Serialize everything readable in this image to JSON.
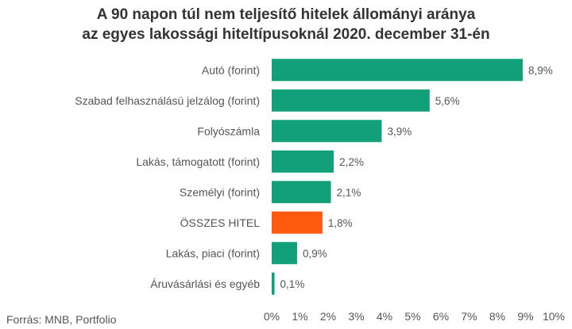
{
  "title_line1": "A 90 napon túl nem teljesítő hitelek állományi aránya",
  "title_line2": "az egyes lakossági hiteltípusoknál 2020. december 31-én",
  "source": "Forrás: MNB, Portfolio",
  "colors": {
    "bar": "#12A07A",
    "highlight": "#FF5B0F",
    "text": "#555555",
    "title": "#333333"
  },
  "chart_data": {
    "type": "bar",
    "orientation": "horizontal",
    "categories": [
      "Autó (forint)",
      "Szabad felhasználású jelzálog (forint)",
      "Folyószámla",
      "Lakás, támogatott (forint)",
      "Személyi (forint)",
      "ÖSSZES HITEL",
      "Lakás, piaci (forint)",
      "Áruvásárlási és egyéb"
    ],
    "values": [
      8.9,
      5.6,
      3.9,
      2.2,
      2.1,
      1.8,
      0.9,
      0.1
    ],
    "data_labels": [
      "8,9%",
      "5,6%",
      "3,9%",
      "2,2%",
      "2,1%",
      "1,8%",
      "0,9%",
      "0,1%"
    ],
    "highlight_category": "ÖSSZES HITEL",
    "xlim": [
      0,
      10
    ],
    "x_ticks": [
      0,
      1,
      2,
      3,
      4,
      5,
      6,
      7,
      8,
      9,
      10
    ],
    "x_tick_labels": [
      "0%",
      "1%",
      "2%",
      "3%",
      "4%",
      "5%",
      "6%",
      "7%",
      "8%",
      "9%",
      "10%"
    ],
    "grid": false,
    "legend": "none"
  }
}
